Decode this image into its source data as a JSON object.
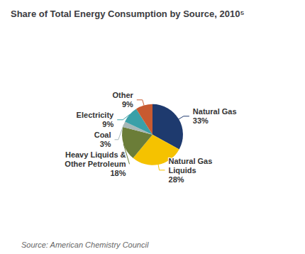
{
  "chart_data": {
    "type": "pie",
    "title": "Share of Total Energy Consumption by Source, 2010⁵",
    "categories": [
      "Natural Gas",
      "Natural Gas\nLiquids",
      "Heavy Liquids &\nOther Petroleum",
      "Coal",
      "Electricity",
      "Other"
    ],
    "values": [
      33,
      28,
      18,
      3,
      9,
      9
    ],
    "value_labels": [
      "33%",
      "28%",
      "18%",
      "3%",
      "9%",
      "9%"
    ],
    "colors": [
      "#1e3a6e",
      "#f5c200",
      "#6b7d38",
      "#a8b8b8",
      "#3aa0a8",
      "#c85a30"
    ],
    "data_labels": true,
    "annotations": [
      "Source: American Chemistry Council"
    ]
  }
}
